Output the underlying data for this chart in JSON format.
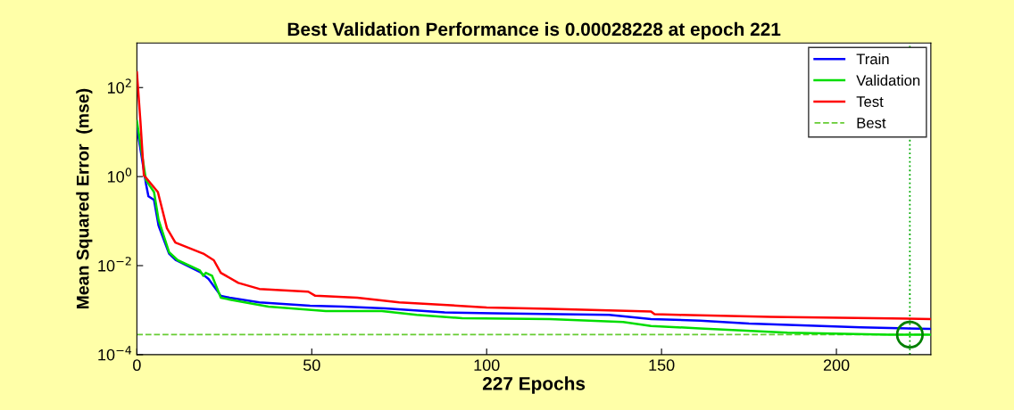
{
  "chart_data": {
    "type": "line",
    "title": "Best Validation Performance is 0.00028228 at epoch 221",
    "xlabel": "227 Epochs",
    "ylabel": "Mean Squared Error  (mse)",
    "log": "y",
    "xlim": [
      0,
      227
    ],
    "ylim": [
      0.0001,
      1000
    ],
    "xticks": [
      0,
      50,
      100,
      150,
      200
    ],
    "yticks": [
      {
        "value": 0.0001,
        "label": "10$^{−4}$"
      },
      {
        "value": 0.01,
        "label": "10$^{−2}$"
      },
      {
        "value": 1,
        "label": "10$^{0}$"
      },
      {
        "value": 100,
        "label": "10$^{2}$"
      }
    ],
    "grid": false,
    "legend": "top right",
    "marker": "none",
    "line_style": "solid",
    "series": [
      {
        "name": "Train",
        "color": "#0000ff",
        "x": [
          0,
          2.6,
          3.3,
          4.9,
          6.2,
          9.2,
          11.2,
          18,
          20.5,
          24,
          26.5,
          35,
          49.5,
          59,
          71,
          88,
          102,
          135,
          147,
          161,
          175,
          207,
          227
        ],
        "values": [
          12.9,
          0.69,
          0.36,
          0.3,
          0.079,
          0.0186,
          0.0132,
          0.0072,
          0.005,
          0.0021,
          0.0019,
          0.0015,
          0.00126,
          0.0012,
          0.0011,
          0.00089,
          0.00085,
          0.00078,
          0.00063,
          0.00058,
          0.0005,
          0.00041,
          0.00038
        ]
      },
      {
        "name": "Validation",
        "color": "#00dd00",
        "x": [
          0,
          2.6,
          4.9,
          6.2,
          9.2,
          11.7,
          18,
          19,
          19.7,
          21.5,
          24,
          27,
          37.6,
          54,
          70,
          80,
          93,
          118,
          139,
          147,
          161,
          186,
          215,
          227
        ],
        "values": [
          17.8,
          0.83,
          0.45,
          0.107,
          0.02,
          0.0132,
          0.0078,
          0.0059,
          0.0069,
          0.0059,
          0.0019,
          0.0017,
          0.0012,
          0.00095,
          0.00095,
          0.00078,
          0.00066,
          0.00063,
          0.00054,
          0.00044,
          0.00039,
          0.00031,
          0.00028,
          0.00028
        ]
      },
      {
        "name": "Test",
        "color": "#ff0000",
        "x": [
          0,
          1,
          2,
          6,
          8.6,
          11,
          19,
          22,
          24,
          29,
          35,
          49,
          51,
          63,
          75,
          100,
          118,
          147,
          148,
          155,
          181,
          227
        ],
        "values": [
          220,
          17.8,
          1.07,
          0.45,
          0.069,
          0.033,
          0.0186,
          0.0132,
          0.0069,
          0.0041,
          0.003,
          0.0026,
          0.0021,
          0.0019,
          0.0015,
          0.00115,
          0.00107,
          0.00093,
          0.00081,
          0.00078,
          0.00071,
          0.00063
        ]
      },
      {
        "type": "scatter",
        "marker": "circle",
        "color": "#008000",
        "x": [
          221
        ],
        "values": [
          0.00028228
        ]
      }
    ],
    "ref_lines": [
      {
        "axis": "y",
        "value": 0.00028228,
        "label": "Best",
        "color": "#66cc33",
        "line_style": "dashed"
      },
      {
        "axis": "x",
        "value": 221,
        "color": "#00aa00",
        "line_style": "dotted"
      }
    ]
  }
}
